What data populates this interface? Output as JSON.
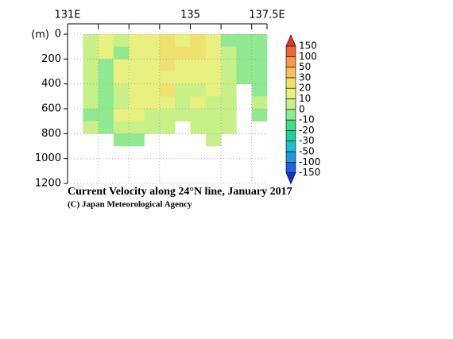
{
  "chart_data": {
    "type": "heatmap",
    "title": "Current Velocity along 24°N line, January 2017",
    "credit": "(C) Japan Meteorological Agency",
    "ylabel": "(m)",
    "xlim": [
      131,
      137.5
    ],
    "xticks": [
      {
        "value": 131,
        "label": "131E"
      },
      135,
      {
        "value": 137.5,
        "label": "137.5E"
      }
    ],
    "xminorticks": [
      132,
      133,
      134,
      136,
      137
    ],
    "ylim": [
      0,
      1200
    ],
    "y_inverted": true,
    "yticks": [
      0,
      200,
      400,
      600,
      800,
      1000,
      1200
    ],
    "grid": true,
    "xbins": [
      131,
      131.5,
      132,
      132.5,
      133,
      133.5,
      134,
      134.5,
      135,
      135.5,
      136,
      136.5,
      137,
      137.5
    ],
    "ybins": [
      0,
      100,
      200,
      300,
      400,
      500,
      600,
      700,
      800,
      900,
      1000,
      1100,
      1200
    ],
    "z": [
      [
        null,
        5,
        12,
        8,
        15,
        10,
        25,
        15,
        20,
        10,
        -5,
        -5,
        -5
      ],
      [
        null,
        8,
        10,
        -5,
        12,
        15,
        20,
        25,
        20,
        12,
        5,
        -5,
        -5
      ],
      [
        null,
        5,
        -5,
        12,
        10,
        15,
        25,
        15,
        10,
        15,
        5,
        -8,
        -5
      ],
      [
        null,
        5,
        -5,
        15,
        12,
        10,
        12,
        10,
        12,
        10,
        8,
        -5,
        -5
      ],
      [
        null,
        5,
        -8,
        8,
        15,
        10,
        25,
        8,
        8,
        10,
        8,
        null,
        -5
      ],
      [
        null,
        3,
        -8,
        5,
        10,
        12,
        10,
        8,
        10,
        5,
        5,
        null,
        3
      ],
      [
        null,
        -8,
        -5,
        12,
        10,
        8,
        8,
        5,
        8,
        8,
        3,
        null,
        -5
      ],
      [
        null,
        5,
        -5,
        5,
        8,
        5,
        5,
        null,
        5,
        5,
        3,
        null,
        null
      ],
      [
        null,
        null,
        null,
        -8,
        -5,
        null,
        null,
        null,
        null,
        5,
        null,
        null,
        null
      ],
      [
        null,
        null,
        null,
        null,
        null,
        null,
        null,
        null,
        null,
        null,
        null,
        null,
        null
      ],
      [
        null,
        null,
        null,
        null,
        null,
        null,
        null,
        null,
        null,
        null,
        null,
        null,
        null
      ],
      [
        null,
        null,
        null,
        null,
        null,
        null,
        null,
        null,
        null,
        null,
        null,
        null,
        null
      ]
    ],
    "colorbar": {
      "levels": [
        -150,
        -100,
        -50,
        -30,
        -20,
        -10,
        0,
        10,
        20,
        30,
        50,
        100,
        150
      ],
      "colors": [
        "#1030c8",
        "#2060e0",
        "#2098e0",
        "#20c0c8",
        "#20d0a0",
        "#40dc88",
        "#90e890",
        "#c8f088",
        "#e8f080",
        "#f0e070",
        "#f8c060",
        "#f89850",
        "#f06838",
        "#e03828"
      ]
    }
  }
}
